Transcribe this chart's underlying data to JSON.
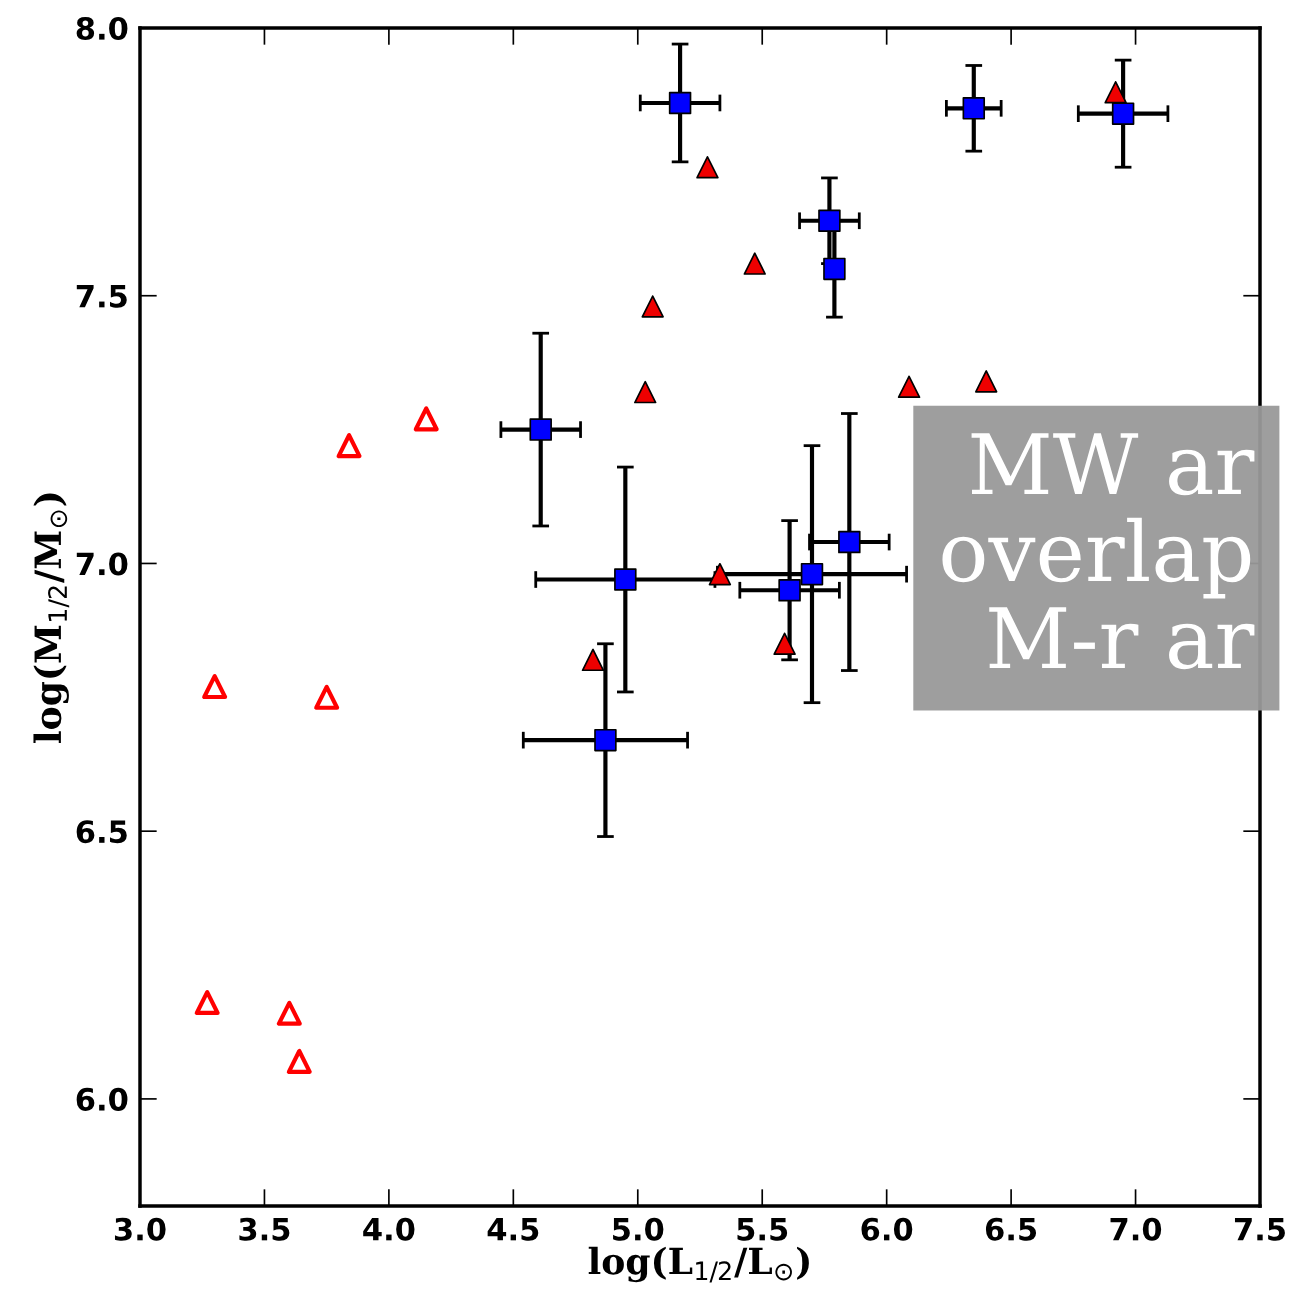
{
  "chart_data": {
    "type": "scatter",
    "xlabel": "log(L$_{1/2}$/L$_{⊙}$)",
    "ylabel": "log(M$_{1/2}$/M$_{⊙}$)",
    "xlim": [
      3.0,
      7.5
    ],
    "ylim": [
      5.8,
      8.0
    ],
    "xticks": [
      {
        "value": 3.0,
        "label": "3.0"
      },
      {
        "value": 3.5,
        "label": "3.5"
      },
      {
        "value": 4.0,
        "label": "4.0"
      },
      {
        "value": 4.5,
        "label": "4.5"
      },
      {
        "value": 5.0,
        "label": "5.0"
      },
      {
        "value": 5.5,
        "label": "5.5"
      },
      {
        "value": 6.0,
        "label": "6.0"
      },
      {
        "value": 6.5,
        "label": "6.5"
      },
      {
        "value": 7.0,
        "label": "7.0"
      },
      {
        "value": 7.5,
        "label": "7.5"
      }
    ],
    "yticks": [
      {
        "value": 6.0,
        "label": "6.0"
      },
      {
        "value": 6.5,
        "label": "6.5"
      },
      {
        "value": 7.0,
        "label": "7.0"
      },
      {
        "value": 7.5,
        "label": "7.5"
      },
      {
        "value": 8.0,
        "label": "8.0"
      }
    ],
    "grid": false,
    "legend": false,
    "series": [
      {
        "color": "#ff0000",
        "marker": "triangle",
        "x": [
          3.84,
          4.15,
          3.3,
          3.75,
          3.27,
          3.6,
          3.64
        ],
        "values": [
          7.22,
          7.27,
          6.77,
          6.75,
          6.18,
          6.16,
          6.07
        ]
      },
      {
        "color": "#ee0000",
        "marker": "triangle",
        "x": [
          5.28,
          5.47,
          5.06,
          5.03,
          6.09,
          6.4,
          6.92,
          5.33,
          5.59,
          4.82
        ],
        "values": [
          7.74,
          7.56,
          7.48,
          7.32,
          7.33,
          7.34,
          7.88,
          6.98,
          6.85,
          6.82
        ]
      },
      {
        "color": "#0000ff",
        "marker": "square",
        "x": [
          5.17,
          6.35,
          6.95,
          5.77,
          5.79,
          4.61,
          4.95,
          4.87,
          5.61,
          5.7,
          5.85
        ],
        "values": [
          7.86,
          7.85,
          7.84,
          7.64,
          7.55,
          7.25,
          6.97,
          6.67,
          6.95,
          6.98,
          7.04
        ],
        "xerrors": [
          0.16,
          0.11,
          0.18,
          0.12,
          null,
          0.16,
          0.36,
          0.33,
          0.2,
          0.38,
          0.16
        ],
        "errors": [
          0.11,
          0.08,
          0.1,
          0.08,
          0.09,
          0.18,
          0.21,
          0.18,
          0.13,
          0.24,
          0.24
        ]
      }
    ],
    "annotations": [
      "MW ar\noverlap\nM-r ar"
    ]
  }
}
